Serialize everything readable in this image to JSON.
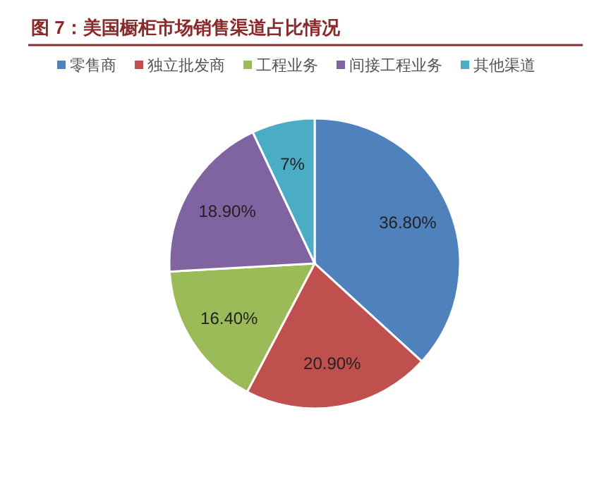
{
  "chart_data": {
    "type": "pie",
    "title": "图 7：美国橱柜市场销售渠道占比情况",
    "categories": [
      "零售商",
      "独立批发商",
      "工程业务",
      "间接工程业务",
      "其他渠道"
    ],
    "values": [
      36.8,
      20.9,
      16.4,
      18.9,
      7
    ],
    "value_labels": [
      "36.80%",
      "20.90%",
      "16.40%",
      "18.90%",
      "7%"
    ],
    "colors": [
      "#4f81bd",
      "#c0504d",
      "#9bbb59",
      "#8064a2",
      "#4bacc6"
    ],
    "legend": "top"
  }
}
